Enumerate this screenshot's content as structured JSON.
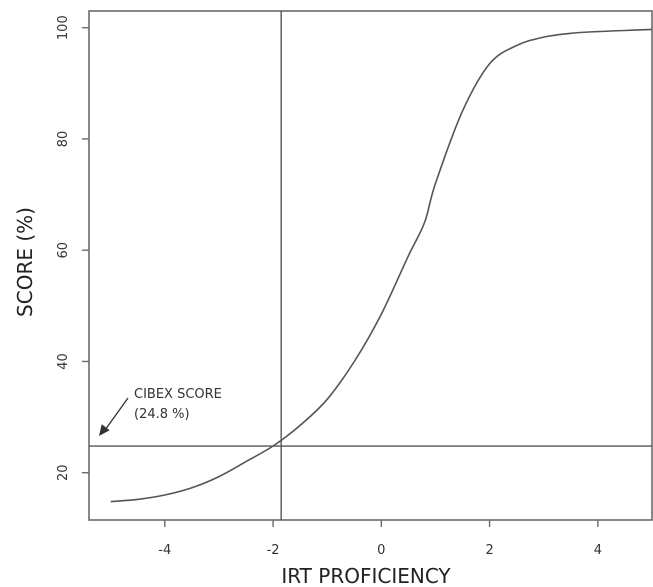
{
  "chart_data": {
    "type": "line",
    "xlabel": "IRT PROFICIENCY",
    "ylabel": "SCORE (%)",
    "xlim": [
      -5.4,
      5.0
    ],
    "ylim": [
      11.5,
      103.0
    ],
    "xticks": [
      -4,
      -2,
      0,
      2,
      4
    ],
    "xtick_labels": [
      "-4",
      "-2",
      "0",
      "2",
      "4"
    ],
    "yticks": [
      20,
      40,
      60,
      80,
      100
    ],
    "ytick_labels": [
      "20",
      "40",
      "60",
      "80",
      "100"
    ],
    "grid": false,
    "series": [
      {
        "x": [
          -5.0,
          -4.5,
          -4.0,
          -3.5,
          -3.0,
          -2.5,
          -2.0,
          -1.5,
          -1.0,
          -0.5,
          0.0,
          0.5,
          0.8,
          1.0,
          1.5,
          2.0,
          2.5,
          3.0,
          3.5,
          4.0,
          4.5,
          5.0
        ],
        "y": [
          14.8,
          15.2,
          16.0,
          17.3,
          19.3,
          22.0,
          24.8,
          28.5,
          33.2,
          40.0,
          48.5,
          59.0,
          65.0,
          72.0,
          85.0,
          93.5,
          96.8,
          98.3,
          99.0,
          99.3,
          99.5,
          99.7
        ]
      }
    ],
    "reference_lines": {
      "vertical_x": -1.85,
      "horizontal_y": 24.8
    },
    "annotation": {
      "line1": "CIBEX SCORE",
      "line2": "(24.8 %)",
      "arrow_to": {
        "x": -5.4,
        "y": 24.8
      }
    }
  }
}
